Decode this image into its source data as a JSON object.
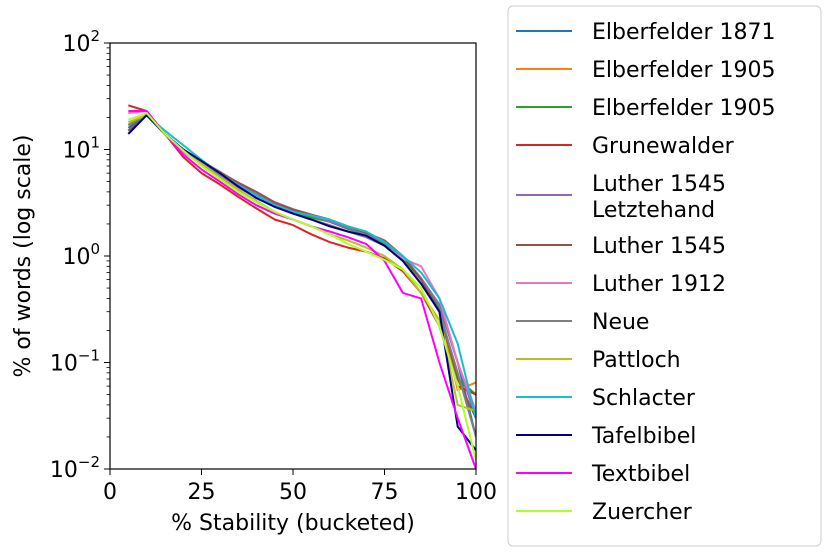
{
  "chart_data": {
    "type": "line",
    "title": "",
    "xlabel": "% Stability (bucketed)",
    "ylabel": "% of words (log scale)",
    "xlim": [
      0,
      100
    ],
    "ylim": [
      0.01,
      100
    ],
    "yscale": "log",
    "xticks": [
      0,
      25,
      50,
      75,
      100
    ],
    "yticks": [
      {
        "value": 0.01,
        "base": "10",
        "exp": "−2"
      },
      {
        "value": 0.1,
        "base": "10",
        "exp": "−1"
      },
      {
        "value": 1,
        "base": "10",
        "exp": "0"
      },
      {
        "value": 10,
        "base": "10",
        "exp": "1"
      },
      {
        "value": 100,
        "base": "10",
        "exp": "2"
      }
    ],
    "legend_position": "outside-right",
    "x": [
      5,
      10,
      15,
      20,
      25,
      30,
      35,
      40,
      45,
      50,
      55,
      60,
      65,
      70,
      75,
      80,
      85,
      90,
      95,
      100
    ],
    "series": [
      {
        "name": "Elberfelder 1871",
        "color": "#1f77b4",
        "values": [
          16,
          21,
          14,
          10,
          7.8,
          6.0,
          4.6,
          3.8,
          3.1,
          2.7,
          2.4,
          2.1,
          1.8,
          1.6,
          1.3,
          0.95,
          0.6,
          0.35,
          0.1,
          0.02
        ]
      },
      {
        "name": "Elberfelder 1905",
        "color": "#ff7f0e",
        "values": [
          17,
          21,
          14,
          10,
          7.5,
          5.7,
          4.4,
          3.6,
          3.0,
          2.6,
          2.3,
          2.1,
          1.8,
          1.6,
          1.3,
          0.95,
          0.6,
          0.32,
          0.055,
          0.065
        ]
      },
      {
        "name": "Elberfelder 1905",
        "color": "#2ca02c",
        "values": [
          17,
          21,
          14,
          10,
          7.6,
          5.8,
          4.5,
          3.7,
          3.0,
          2.6,
          2.3,
          2.1,
          1.8,
          1.6,
          1.3,
          0.95,
          0.6,
          0.32,
          0.07,
          0.05
        ]
      },
      {
        "name": "Grunewalder",
        "color": "#d62728",
        "values": [
          26,
          23,
          14,
          8.5,
          6.0,
          4.7,
          3.6,
          2.8,
          2.2,
          1.95,
          1.6,
          1.35,
          1.2,
          1.1,
          0.95,
          0.72,
          0.45,
          0.22,
          0.06,
          0.05
        ]
      },
      {
        "name": "Luther 1545\nLetztehand",
        "color": "#9467bd",
        "values": [
          15,
          21,
          14,
          10,
          7.8,
          6.2,
          4.8,
          3.8,
          3.1,
          2.7,
          2.4,
          2.1,
          1.85,
          1.6,
          1.35,
          1.0,
          0.62,
          0.35,
          0.1,
          0.03
        ]
      },
      {
        "name": "Luther 1545",
        "color": "#8c564b",
        "values": [
          15,
          21,
          14,
          10,
          7.6,
          6.1,
          4.9,
          4.0,
          3.2,
          2.75,
          2.45,
          2.2,
          1.9,
          1.65,
          1.4,
          1.0,
          0.6,
          0.3,
          0.07,
          0.03
        ]
      },
      {
        "name": "Luther 1912",
        "color": "#e377c2",
        "values": [
          22,
          23,
          14,
          9.5,
          7.2,
          5.7,
          4.4,
          3.6,
          2.9,
          2.5,
          2.2,
          1.9,
          1.7,
          1.5,
          1.25,
          0.95,
          0.8,
          0.4,
          0.1,
          0.035
        ]
      },
      {
        "name": "Neue",
        "color": "#7f7f7f",
        "values": [
          17,
          21,
          14,
          10,
          7.5,
          5.8,
          4.5,
          3.6,
          2.9,
          2.5,
          2.2,
          1.95,
          1.7,
          1.5,
          1.25,
          0.9,
          0.55,
          0.3,
          0.08,
          0.02
        ]
      },
      {
        "name": "Pattloch",
        "color": "#bcbd22",
        "values": [
          18,
          21,
          14,
          10,
          7.4,
          5.5,
          4.2,
          3.3,
          2.6,
          2.2,
          1.9,
          1.6,
          1.4,
          1.2,
          1.0,
          0.75,
          0.45,
          0.25,
          0.04,
          0.035
        ]
      },
      {
        "name": "Schlacter",
        "color": "#17becf",
        "values": [
          14,
          21,
          15,
          11,
          8.0,
          6.0,
          4.6,
          3.7,
          3.0,
          2.6,
          2.4,
          2.2,
          1.9,
          1.7,
          1.35,
          1.0,
          0.7,
          0.4,
          0.15,
          0.03
        ]
      },
      {
        "name": "Tafelbibel",
        "color": "#000080",
        "values": [
          14,
          21,
          14,
          10,
          7.8,
          6.0,
          4.5,
          3.5,
          2.9,
          2.5,
          2.2,
          1.9,
          1.7,
          1.55,
          1.25,
          0.9,
          0.55,
          0.3,
          0.025,
          0.015
        ]
      },
      {
        "name": "Textbibel",
        "color": "#ff00ff",
        "values": [
          23,
          23,
          14,
          9.0,
          6.5,
          5.0,
          3.8,
          3.0,
          2.5,
          2.2,
          1.9,
          1.7,
          1.5,
          1.3,
          0.9,
          0.45,
          0.4,
          0.1,
          0.03,
          0.01
        ]
      },
      {
        "name": "Zuercher",
        "color": "#adff2f",
        "values": [
          19,
          22,
          14,
          9.8,
          7.0,
          5.3,
          4.0,
          3.2,
          2.6,
          2.2,
          1.9,
          1.6,
          1.3,
          1.1,
          0.92,
          0.75,
          0.5,
          0.22,
          0.06,
          0.012
        ]
      }
    ]
  }
}
